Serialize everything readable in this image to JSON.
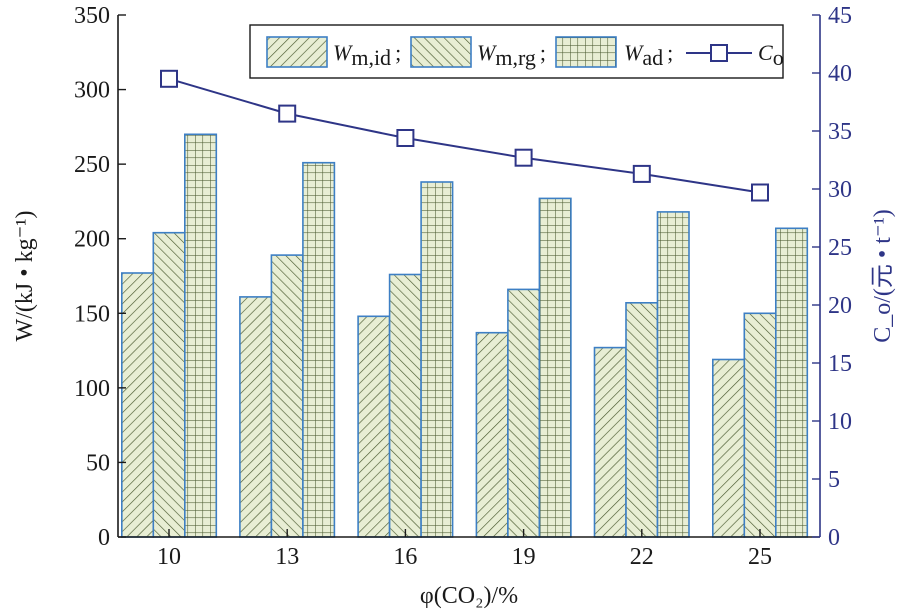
{
  "chart_data": {
    "type": "bar",
    "categories": [
      "10",
      "13",
      "16",
      "19",
      "22",
      "25"
    ],
    "xlabel": "φ(CO₂)/%",
    "ylabel": "W/(kJ • kg⁻¹)",
    "ylim": [
      0,
      350
    ],
    "yticks": [
      "0",
      "50",
      "100",
      "150",
      "200",
      "250",
      "300",
      "350"
    ],
    "y2label": "C_o/(元 • t⁻¹)",
    "y2lim": [
      0,
      45
    ],
    "y2ticks": [
      "0",
      "5",
      "10",
      "15",
      "20",
      "25",
      "30",
      "35",
      "40",
      "45"
    ],
    "legend_position": "top-right",
    "grid": false,
    "series": [
      {
        "name": "W_m,id",
        "kind": "bar",
        "pattern": "diagonal-right",
        "values": [
          177,
          161,
          148,
          137,
          127,
          119
        ]
      },
      {
        "name": "W_m,rg",
        "kind": "bar",
        "pattern": "diagonal-left",
        "values": [
          204,
          189,
          176,
          166,
          157,
          150
        ]
      },
      {
        "name": "W_ad",
        "kind": "bar",
        "pattern": "grid",
        "values": [
          270,
          251,
          238,
          227,
          218,
          207
        ]
      },
      {
        "name": "C_o",
        "kind": "line",
        "axis": "right",
        "marker": "square",
        "values": [
          39.5,
          36.5,
          34.4,
          32.7,
          31.3,
          29.7
        ]
      }
    ],
    "legend": {
      "items": [
        {
          "main": "W",
          "sub": "m,id",
          "sep": ";"
        },
        {
          "main": "W",
          "sub": "m,rg",
          "sep": ";"
        },
        {
          "main": "W",
          "sub": "ad",
          "sep": ";"
        },
        {
          "main": "C",
          "sub": "o",
          "sep": ""
        }
      ]
    },
    "colors": {
      "bar_fill": "#e8eed4",
      "bar_hatch": "#4a5a30",
      "bar_border": "#3d7fc4",
      "line": "#2e3587",
      "left_axis": "#1a1a1a",
      "right_axis": "#2e3587"
    }
  }
}
